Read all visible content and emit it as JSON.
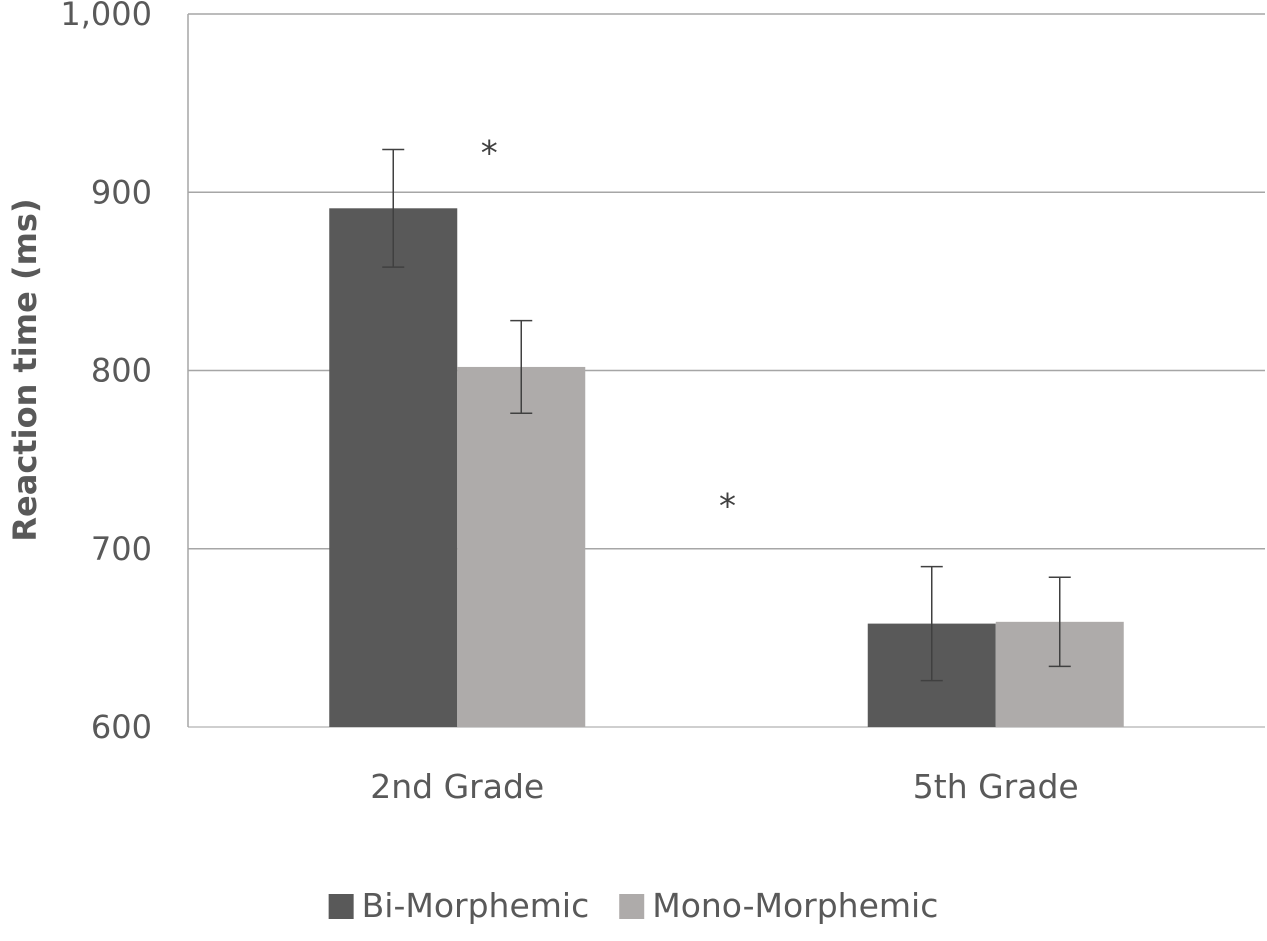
{
  "chart_data": {
    "type": "bar",
    "title": "",
    "xlabel": "",
    "ylabel": "Reaction time (ms)",
    "ylim": [
      600,
      1000
    ],
    "yticks": [
      600,
      700,
      800,
      900,
      1000
    ],
    "ytick_labels": [
      "600",
      "700",
      "800",
      "900",
      "1,000"
    ],
    "categories": [
      "2nd Grade",
      "5th Grade"
    ],
    "series": [
      {
        "name": "Bi-Morphemic",
        "color": "#595959",
        "values": [
          891,
          658
        ],
        "error": [
          33,
          32
        ]
      },
      {
        "name": "Mono-Morphemic",
        "color": "#aeabaa",
        "values": [
          802,
          659
        ],
        "error": [
          26,
          25
        ]
      }
    ],
    "annotations": [
      {
        "text": "*",
        "x_category": 0,
        "y": 928
      },
      {
        "text": "*",
        "x_between": [
          0,
          1
        ],
        "y": 730
      }
    ],
    "grid": true,
    "legend": "bottom-center"
  }
}
